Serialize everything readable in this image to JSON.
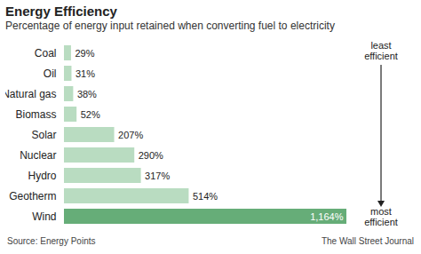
{
  "chart_data": {
    "type": "bar",
    "orientation": "horizontal",
    "title": "Energy Efficiency",
    "subtitle": "Percentage of energy input retained when converting fuel to electricity",
    "categories": [
      "Coal",
      "Oil",
      "Natural gas",
      "Biomass",
      "Solar",
      "Nuclear",
      "Hydro",
      "Geotherm",
      "Wind"
    ],
    "values": [
      29,
      31,
      38,
      52,
      207,
      290,
      317,
      514,
      1164
    ],
    "value_labels": [
      "29%",
      "31%",
      "38%",
      "52%",
      "207%",
      "290%",
      "317%",
      "514%",
      "1,164%"
    ],
    "colors": [
      "#b9dcc1",
      "#b9dcc1",
      "#b9dcc1",
      "#b9dcc1",
      "#b9dcc1",
      "#b9dcc1",
      "#b9dcc1",
      "#b9dcc1",
      "#66ad78"
    ],
    "xlim": [
      0,
      1164
    ],
    "data_labels": true,
    "tick_labels": "y",
    "annotations": [
      "least efficient",
      "most efficient"
    ],
    "source": "Source: Energy Points",
    "credit": "The Wall Street Journal"
  }
}
